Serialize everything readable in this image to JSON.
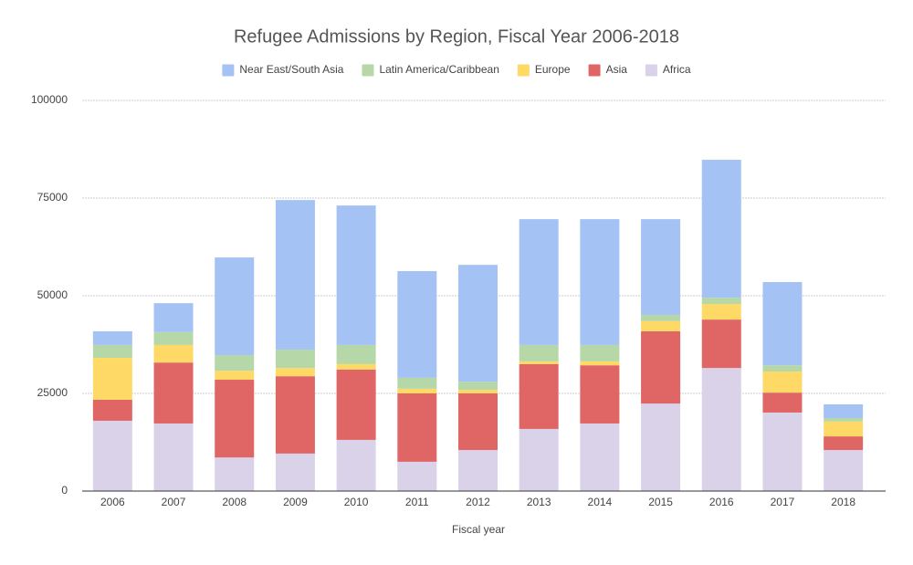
{
  "chart_data": {
    "type": "stacked_bar",
    "title": "Refugee Admissions by Region, Fiscal Year 2006-2018",
    "x_label": "Fiscal year",
    "categories": [
      "2006",
      "2007",
      "2008",
      "2009",
      "2010",
      "2011",
      "2012",
      "2013",
      "2014",
      "2015",
      "2016",
      "2017",
      "2018"
    ],
    "series": [
      {
        "name": "Near East/South Asia",
        "color": "#a4c2f4",
        "values": [
          3500,
          7400,
          25000,
          38300,
          35700,
          27300,
          29900,
          32200,
          32200,
          24500,
          35300,
          21300,
          3500
        ]
      },
      {
        "name": "Latin America/Caribbean",
        "color": "#b6d7a8",
        "values": [
          3300,
          3300,
          4000,
          4700,
          4900,
          2800,
          2100,
          4200,
          4200,
          1600,
          1600,
          1600,
          900
        ]
      },
      {
        "name": "Europe",
        "color": "#ffd966",
        "values": [
          10700,
          4500,
          2300,
          2100,
          1400,
          1200,
          900,
          700,
          1000,
          2600,
          4000,
          5400,
          3800
        ]
      },
      {
        "name": "Asia",
        "color": "#e06666",
        "values": [
          5400,
          15600,
          19900,
          19800,
          18000,
          17500,
          14500,
          16600,
          14900,
          18500,
          12400,
          5100,
          3500
        ]
      },
      {
        "name": "Africa",
        "color": "#d9d2e9",
        "values": [
          18000,
          17300,
          8600,
          9600,
          13100,
          7500,
          10500,
          15900,
          17300,
          22400,
          31500,
          20100,
          10500
        ]
      }
    ],
    "ylim": [
      0,
      100000
    ],
    "yticks": [
      0,
      25000,
      50000,
      75000,
      100000
    ],
    "grid": true,
    "legend": "top"
  }
}
